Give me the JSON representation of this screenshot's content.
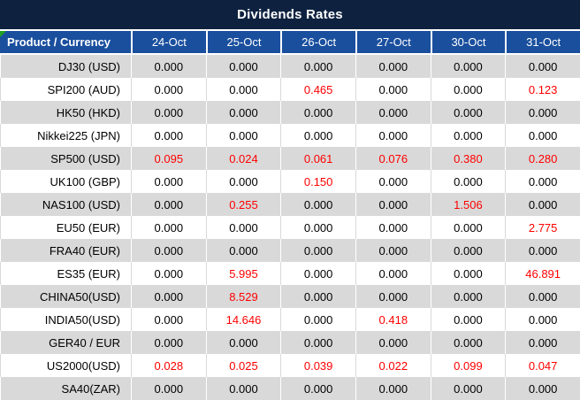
{
  "title": "Dividends Rates",
  "colors": {
    "title_bar_bg": "#0E2240",
    "header_bg": "#1A4F9E",
    "alt_row_bg": "#D9D9D9",
    "rate_red": "#FF0000",
    "corner_marker_green": "#21A121"
  },
  "table": {
    "product_header": "Product / Currency",
    "dates": [
      "24-Oct",
      "25-Oct",
      "26-Oct",
      "27-Oct",
      "30-Oct",
      "31-Oct"
    ],
    "rows": [
      {
        "product": "DJ30 (USD)",
        "values": [
          "0.000",
          "0.000",
          "0.000",
          "0.000",
          "0.000",
          "0.000"
        ],
        "colors": [
          "",
          "",
          "",
          "",
          "",
          ""
        ]
      },
      {
        "product": "SPI200 (AUD)",
        "values": [
          "0.000",
          "0.000",
          "0.465",
          "0.000",
          "0.000",
          "0.123"
        ],
        "colors": [
          "",
          "",
          "red",
          "",
          "",
          "red"
        ]
      },
      {
        "product": "HK50 (HKD)",
        "values": [
          "0.000",
          "0.000",
          "0.000",
          "0.000",
          "0.000",
          "0.000"
        ],
        "colors": [
          "",
          "",
          "",
          "",
          "",
          ""
        ]
      },
      {
        "product": "Nikkei225 (JPN)",
        "values": [
          "0.000",
          "0.000",
          "0.000",
          "0.000",
          "0.000",
          "0.000"
        ],
        "colors": [
          "",
          "",
          "",
          "",
          "",
          ""
        ]
      },
      {
        "product": "SP500 (USD)",
        "values": [
          "0.095",
          "0.024",
          "0.061",
          "0.076",
          "0.380",
          "0.280"
        ],
        "colors": [
          "red",
          "red",
          "red",
          "red",
          "red",
          "red"
        ]
      },
      {
        "product": "UK100 (GBP)",
        "values": [
          "0.000",
          "0.000",
          "0.150",
          "0.000",
          "0.000",
          "0.000"
        ],
        "colors": [
          "",
          "",
          "red",
          "",
          "",
          ""
        ]
      },
      {
        "product": "NAS100 (USD)",
        "values": [
          "0.000",
          "0.255",
          "0.000",
          "0.000",
          "1.506",
          "0.000"
        ],
        "colors": [
          "",
          "red",
          "",
          "",
          "red",
          ""
        ]
      },
      {
        "product": "EU50 (EUR)",
        "values": [
          "0.000",
          "0.000",
          "0.000",
          "0.000",
          "0.000",
          "2.775"
        ],
        "colors": [
          "",
          "",
          "",
          "",
          "",
          "red"
        ]
      },
      {
        "product": "FRA40 (EUR)",
        "values": [
          "0.000",
          "0.000",
          "0.000",
          "0.000",
          "0.000",
          "0.000"
        ],
        "colors": [
          "",
          "",
          "",
          "",
          "",
          ""
        ]
      },
      {
        "product": "ES35 (EUR)",
        "values": [
          "0.000",
          "5.995",
          "0.000",
          "0.000",
          "0.000",
          "46.891"
        ],
        "colors": [
          "",
          "red",
          "",
          "",
          "",
          "red"
        ]
      },
      {
        "product": "CHINA50(USD)",
        "values": [
          "0.000",
          "8.529",
          "0.000",
          "0.000",
          "0.000",
          "0.000"
        ],
        "colors": [
          "",
          "red",
          "",
          "",
          "",
          ""
        ]
      },
      {
        "product": "INDIA50(USD)",
        "values": [
          "0.000",
          "14.646",
          "0.000",
          "0.418",
          "0.000",
          "0.000"
        ],
        "colors": [
          "",
          "red",
          "",
          "red",
          "",
          ""
        ]
      },
      {
        "product": "GER40 / EUR",
        "values": [
          "0.000",
          "0.000",
          "0.000",
          "0.000",
          "0.000",
          "0.000"
        ],
        "colors": [
          "",
          "",
          "",
          "",
          "",
          ""
        ]
      },
      {
        "product": "US2000(USD)",
        "values": [
          "0.028",
          "0.025",
          "0.039",
          "0.022",
          "0.099",
          "0.047"
        ],
        "colors": [
          "red",
          "red",
          "red",
          "red",
          "red",
          "red"
        ]
      },
      {
        "product": "SA40(ZAR)",
        "values": [
          "0.000",
          "0.000",
          "0.000",
          "0.000",
          "0.000",
          "0.000"
        ],
        "colors": [
          "",
          "",
          "",
          "",
          "",
          ""
        ]
      }
    ]
  }
}
